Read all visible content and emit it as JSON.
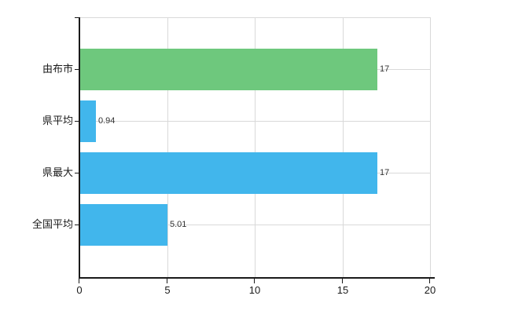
{
  "chart_data": {
    "type": "bar",
    "orientation": "horizontal",
    "title": "",
    "xlabel": "",
    "ylabel": "",
    "categories": [
      "由布市",
      "県平均",
      "県最大",
      "全国平均"
    ],
    "values": [
      17,
      0.94,
      17,
      5.01
    ],
    "value_labels": [
      "17",
      "0.94",
      "17",
      "5.01"
    ],
    "bar_colors": [
      "#6ec87d",
      "#41b6ec",
      "#41b6ec",
      "#41b6ec"
    ],
    "x_ticks": [
      0,
      5,
      10,
      15,
      20
    ],
    "x_tick_labels": [
      "0",
      "5",
      "10",
      "15",
      "20"
    ],
    "xlim": [
      0,
      20
    ],
    "grid": true,
    "gridline_positions_x": [
      5,
      10,
      15,
      20
    ],
    "legend": null,
    "colors": {
      "background": "#ffffff",
      "grid": "#d9d9d9",
      "axis": "#1a1a1a",
      "category_text": "#1a1a1a",
      "value_text": "#333333"
    }
  }
}
